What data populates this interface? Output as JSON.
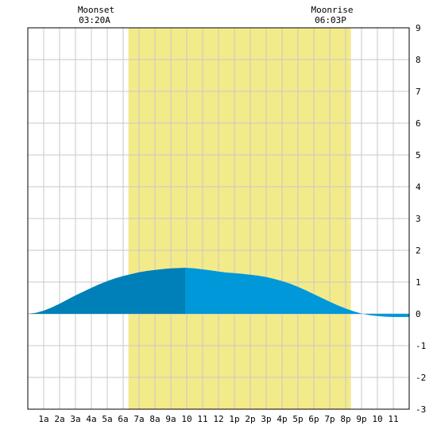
{
  "moon": {
    "moonset": {
      "label": "Moonset",
      "time": "03:20A"
    },
    "moonrise": {
      "label": "Moonrise",
      "time": "06:03P"
    }
  },
  "chart_data": {
    "type": "area",
    "xlim": [
      0,
      24
    ],
    "ylim": [
      -3,
      9
    ],
    "x_ticks": [
      {
        "x": 1,
        "label": "1a"
      },
      {
        "x": 2,
        "label": "2a"
      },
      {
        "x": 3,
        "label": "3a"
      },
      {
        "x": 4,
        "label": "4a"
      },
      {
        "x": 5,
        "label": "5a"
      },
      {
        "x": 6,
        "label": "6a"
      },
      {
        "x": 7,
        "label": "7a"
      },
      {
        "x": 8,
        "label": "8a"
      },
      {
        "x": 9,
        "label": "9a"
      },
      {
        "x": 10,
        "label": "10"
      },
      {
        "x": 11,
        "label": "11"
      },
      {
        "x": 12,
        "label": "12"
      },
      {
        "x": 13,
        "label": "1p"
      },
      {
        "x": 14,
        "label": "2p"
      },
      {
        "x": 15,
        "label": "3p"
      },
      {
        "x": 16,
        "label": "4p"
      },
      {
        "x": 17,
        "label": "5p"
      },
      {
        "x": 18,
        "label": "6p"
      },
      {
        "x": 19,
        "label": "7p"
      },
      {
        "x": 20,
        "label": "8p"
      },
      {
        "x": 21,
        "label": "9p"
      },
      {
        "x": 22,
        "label": "10"
      },
      {
        "x": 23,
        "label": "11"
      }
    ],
    "y_ticks": [
      -3,
      -2,
      -1,
      0,
      1,
      2,
      3,
      4,
      5,
      6,
      7,
      8,
      9
    ],
    "grid": true,
    "daylight": {
      "start": 6.33,
      "end": 20.33,
      "color": "#f3ea8a"
    },
    "moon_events": {
      "moonset": 3.33,
      "moonrise": 18.05
    },
    "peak_split": 9.9,
    "colors": {
      "rising": "#0080b8",
      "falling": "#0098d8"
    },
    "tide": {
      "x": [
        0,
        0.5,
        1,
        1.5,
        2,
        2.5,
        3,
        3.5,
        4,
        4.5,
        5,
        5.5,
        6,
        6.5,
        7,
        7.5,
        8,
        8.5,
        9,
        9.5,
        9.9,
        10.5,
        11,
        11.5,
        12,
        12.5,
        13,
        13.5,
        14,
        14.5,
        15,
        15.5,
        16,
        16.5,
        17,
        17.5,
        18,
        18.5,
        19,
        19.5,
        20,
        20.5,
        21,
        21.5,
        22,
        22.5,
        23,
        23.5,
        24
      ],
      "y": [
        0.0,
        0.03,
        0.1,
        0.2,
        0.32,
        0.45,
        0.58,
        0.7,
        0.82,
        0.93,
        1.03,
        1.12,
        1.19,
        1.25,
        1.31,
        1.35,
        1.38,
        1.41,
        1.43,
        1.44,
        1.45,
        1.43,
        1.4,
        1.37,
        1.33,
        1.3,
        1.28,
        1.26,
        1.23,
        1.2,
        1.16,
        1.1,
        1.03,
        0.95,
        0.85,
        0.74,
        0.62,
        0.5,
        0.38,
        0.27,
        0.17,
        0.08,
        0.01,
        -0.04,
        -0.07,
        -0.09,
        -0.1,
        -0.1,
        -0.1
      ]
    }
  }
}
